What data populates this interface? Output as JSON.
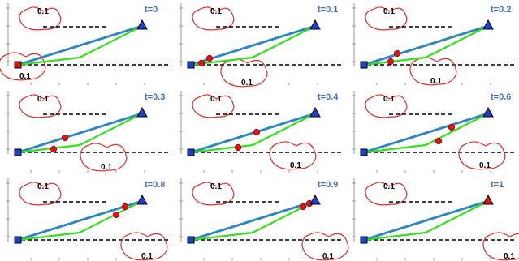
{
  "colors": {
    "start_square": "#1f3fd0",
    "start_square_end": "#d91414",
    "goal_triangle": "#1f3fd0",
    "goal_triangle_end": "#d91414",
    "path_green": "#34e01a",
    "dotted_blue": "#2e86c1",
    "cloud_red": "#e22b2b",
    "robot_red": "#e01414",
    "label_blue": "#4472C4"
  },
  "panels": [
    {
      "time_label": "t=0",
      "upper_cloud_label": "0.1",
      "lower_cloud_label": "0.1"
    },
    {
      "time_label": "t=0.1",
      "upper_cloud_label": "0.1",
      "lower_cloud_label": "0.1"
    },
    {
      "time_label": "t=0.2",
      "upper_cloud_label": "0.1",
      "lower_cloud_label": "0.1"
    },
    {
      "time_label": "t=0.3",
      "upper_cloud_label": "0.1",
      "lower_cloud_label": "0.1"
    },
    {
      "time_label": "t=0.4",
      "upper_cloud_label": "0.1",
      "lower_cloud_label": "0.1"
    },
    {
      "time_label": "t=0.6",
      "upper_cloud_label": "0.1",
      "lower_cloud_label": "0.1"
    },
    {
      "time_label": "t=0.8",
      "upper_cloud_label": "0.1",
      "lower_cloud_label": "0.1"
    },
    {
      "time_label": "t=0.9",
      "upper_cloud_label": "0.1",
      "lower_cloud_label": "0.1"
    },
    {
      "time_label": "t=1",
      "upper_cloud_label": "0.1",
      "lower_cloud_label": "0.1"
    }
  ]
}
